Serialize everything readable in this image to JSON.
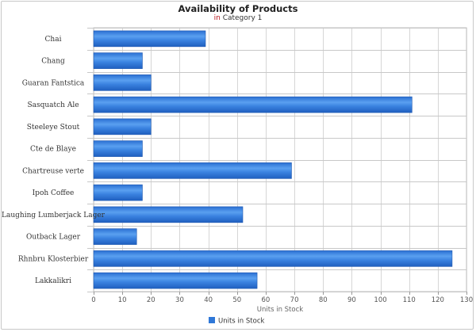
{
  "chart_data": {
    "type": "bar",
    "orientation": "horizontal",
    "title": "Availability of Products",
    "subtitle_prefix": "in",
    "subtitle_rest": "Category 1",
    "xlabel": "Units in Stock",
    "ylabel": "",
    "xlim": [
      0,
      130
    ],
    "xticks": [
      0,
      10,
      20,
      30,
      40,
      50,
      60,
      70,
      80,
      90,
      100,
      110,
      120,
      130
    ],
    "grid": true,
    "legend_position": "bottom",
    "categories": [
      "Chai",
      "Chang",
      "Guaran Fantstica",
      "Sasquatch Ale",
      "Steeleye Stout",
      "Cte de Blaye",
      "Chartreuse verte",
      "Ipoh Coffee",
      "Laughing Lumberjack Lager",
      "Outback Lager",
      "Rhnbru Klosterbier",
      "Lakkalikri"
    ],
    "series": [
      {
        "name": "Units in Stock",
        "color": "#3a7fdc",
        "values": [
          39,
          17,
          20,
          111,
          20,
          17,
          69,
          17,
          52,
          15,
          125,
          57
        ]
      }
    ]
  }
}
